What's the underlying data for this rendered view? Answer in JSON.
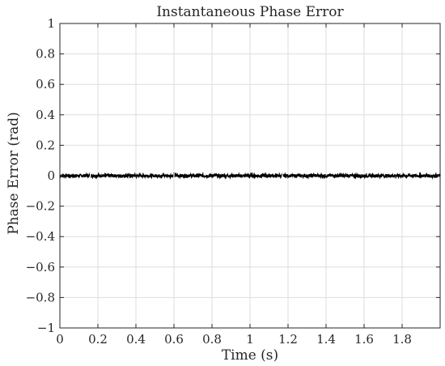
{
  "chart_data": {
    "type": "line",
    "title": "Instantaneous Phase Error",
    "xlabel": "Time (s)",
    "ylabel": "Phase Error (rad)",
    "xlim": [
      0,
      2.0
    ],
    "ylim": [
      -1,
      1
    ],
    "grid": true,
    "legend": "none",
    "x_ticks": [
      0,
      0.2,
      0.4,
      0.6,
      0.8,
      1,
      1.2,
      1.4,
      1.6,
      1.8
    ],
    "x_tick_labels": [
      "0",
      "0.2",
      "0.4",
      "0.6",
      "0.8",
      "1",
      "1.2",
      "1.4",
      "1.6",
      "1.8"
    ],
    "y_ticks": [
      1,
      0.8,
      0.6,
      0.4,
      0.2,
      0,
      -0.2,
      -0.4,
      -0.6,
      -0.8,
      -1
    ],
    "y_tick_labels": [
      "1",
      "0.8",
      "0.6",
      "0.4",
      "0.2",
      "0",
      "−0.2",
      "−0.4",
      "−0.6",
      "−0.8",
      "−1"
    ],
    "series": [
      {
        "color": "#000000",
        "x_range": [
          0,
          2.0
        ],
        "approx_value": 0,
        "noise_band": [
          -0.01,
          0.01
        ],
        "note_gaps_at_x": [
          0.16,
          0.6,
          1.17
        ]
      }
    ],
    "colors": {
      "line": "#000000",
      "grid": "#dedede",
      "axis": "#262626",
      "background": "#ffffff"
    }
  }
}
